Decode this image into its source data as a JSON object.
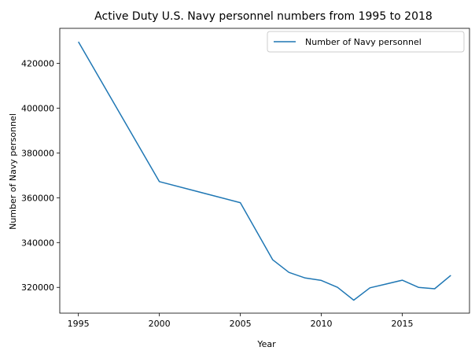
{
  "chart_data": {
    "type": "line",
    "title": "Active Duty U.S. Navy personnel numbers from 1995 to 2018",
    "xlabel": "Year",
    "ylabel": "Number of Navy personnel",
    "xlim": [
      1993.85,
      2019.15
    ],
    "ylim": [
      308500,
      435600
    ],
    "xticks": [
      1995,
      2000,
      2005,
      2010,
      2015
    ],
    "yticks": [
      320000,
      340000,
      360000,
      380000,
      400000,
      420000
    ],
    "grid": false,
    "legend": "top-right",
    "series": [
      {
        "name": "Number of Navy personnel",
        "color": "#1f77b4",
        "x": [
          1995,
          2000,
          2005,
          2007,
          2008,
          2009,
          2010,
          2011,
          2012,
          2013,
          2014,
          2015,
          2016,
          2017,
          2018
        ],
        "y": [
          429600,
          367200,
          357800,
          332300,
          326700,
          324200,
          323100,
          320000,
          314300,
          319800,
          321500,
          323200,
          320000,
          319400,
          325400
        ]
      }
    ]
  }
}
